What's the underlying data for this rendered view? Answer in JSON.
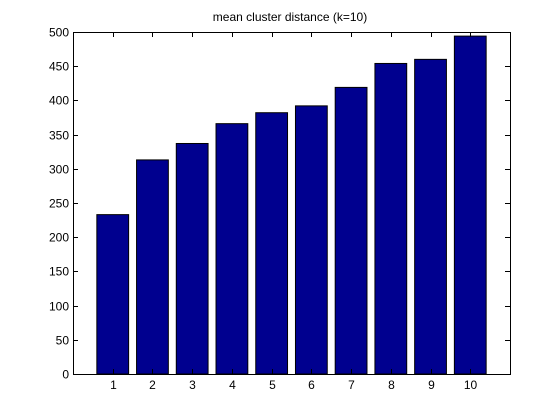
{
  "chart_data": {
    "type": "bar",
    "title": "mean cluster distance (k=10)",
    "xlabel": "",
    "ylabel": "",
    "categories": [
      "1",
      "2",
      "3",
      "4",
      "5",
      "6",
      "7",
      "8",
      "9",
      "10"
    ],
    "values": [
      233,
      313,
      337,
      366,
      382,
      392,
      419,
      454,
      460,
      494
    ],
    "xlim": [
      0,
      11
    ],
    "ylim": [
      0,
      500
    ],
    "yticks": [
      0,
      50,
      100,
      150,
      200,
      250,
      300,
      350,
      400,
      450,
      500
    ],
    "bar_color": "#00008f",
    "grid": false,
    "legend": false
  }
}
